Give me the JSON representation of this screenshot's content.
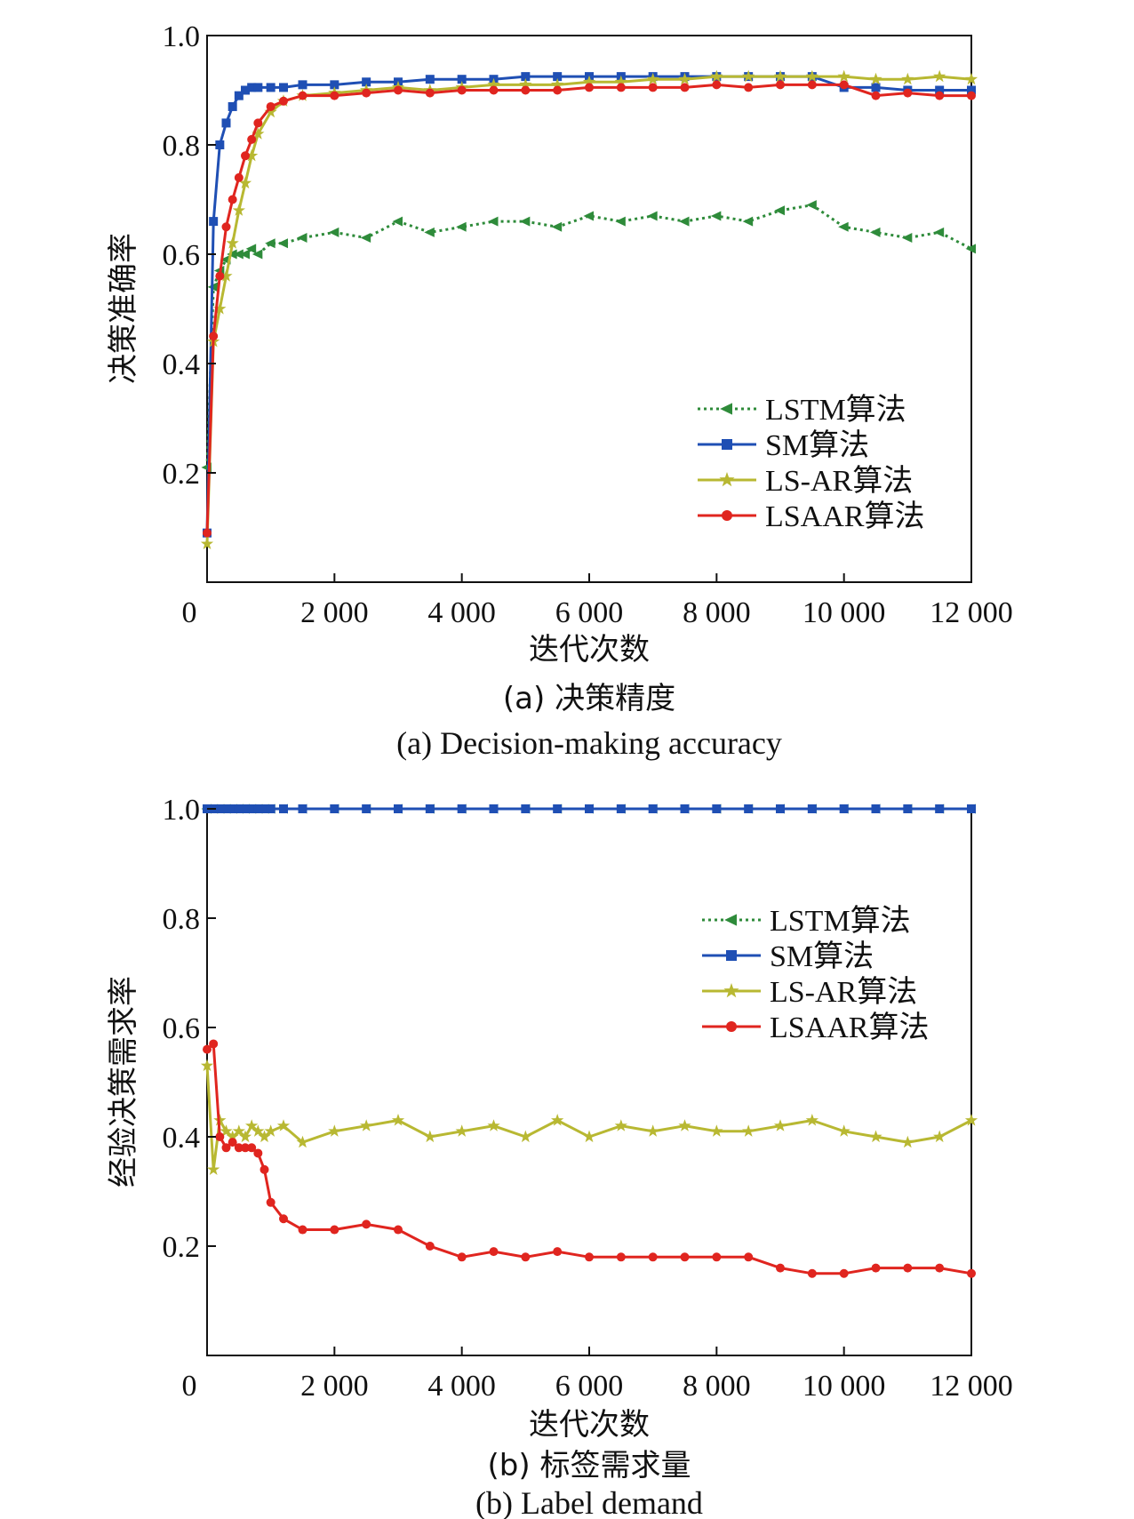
{
  "chart_data": [
    {
      "type": "line",
      "id": "a",
      "xlabel": "迭代次数",
      "ylabel": "决策准确率",
      "caption_zh": "(a) 决策精度",
      "caption_en": "(a) Decision-making accuracy",
      "xlim": [
        0,
        12000
      ],
      "ylim": [
        0,
        1.0
      ],
      "x_ticks": [
        0,
        2000,
        4000,
        6000,
        8000,
        10000,
        12000
      ],
      "x_tick_labels": [
        "0",
        "2 000",
        "4 000",
        "6 000",
        "8 000",
        "10 000",
        "12 000"
      ],
      "y_ticks": [
        0.2,
        0.4,
        0.6,
        0.8,
        1.0
      ],
      "y_tick_labels": [
        "0.2",
        "0.4",
        "0.6",
        "0.8",
        "1.0"
      ],
      "legend_position": "lower-right",
      "x": [
        0,
        100,
        200,
        300,
        400,
        500,
        600,
        700,
        800,
        1000,
        1200,
        1500,
        2000,
        2500,
        3000,
        3500,
        4000,
        4500,
        5000,
        5500,
        6000,
        6500,
        7000,
        7500,
        8000,
        8500,
        9000,
        9500,
        10000,
        10500,
        11000,
        11500,
        12000
      ],
      "series": [
        {
          "name": "LSTM算法",
          "color": "#2e8b3a",
          "marker": "triangle-left",
          "dash": "dotted",
          "values": [
            0.21,
            0.54,
            0.57,
            0.59,
            0.6,
            0.6,
            0.6,
            0.61,
            0.6,
            0.62,
            0.62,
            0.63,
            0.64,
            0.63,
            0.66,
            0.64,
            0.65,
            0.66,
            0.66,
            0.65,
            0.67,
            0.66,
            0.67,
            0.66,
            0.67,
            0.66,
            0.68,
            0.69,
            0.65,
            0.64,
            0.63,
            0.64,
            0.61
          ]
        },
        {
          "name": "SM算法",
          "color": "#1f4fb4",
          "marker": "square",
          "dash": "solid",
          "values": [
            0.09,
            0.66,
            0.8,
            0.84,
            0.87,
            0.89,
            0.9,
            0.905,
            0.905,
            0.905,
            0.905,
            0.91,
            0.91,
            0.915,
            0.915,
            0.92,
            0.92,
            0.92,
            0.925,
            0.925,
            0.925,
            0.925,
            0.925,
            0.925,
            0.925,
            0.925,
            0.925,
            0.925,
            0.905,
            0.905,
            0.9,
            0.9,
            0.9
          ]
        },
        {
          "name": "LS-AR算法",
          "color": "#b8b832",
          "marker": "star",
          "dash": "solid",
          "values": [
            0.07,
            0.44,
            0.5,
            0.56,
            0.62,
            0.68,
            0.73,
            0.78,
            0.82,
            0.86,
            0.88,
            0.89,
            0.895,
            0.9,
            0.905,
            0.9,
            0.905,
            0.91,
            0.91,
            0.91,
            0.915,
            0.915,
            0.92,
            0.92,
            0.925,
            0.925,
            0.925,
            0.925,
            0.925,
            0.92,
            0.92,
            0.925,
            0.92
          ]
        },
        {
          "name": "LSAAR算法",
          "color": "#e0251f",
          "marker": "circle",
          "dash": "solid",
          "values": [
            0.09,
            0.45,
            0.56,
            0.65,
            0.7,
            0.74,
            0.78,
            0.81,
            0.84,
            0.87,
            0.88,
            0.89,
            0.89,
            0.895,
            0.9,
            0.895,
            0.9,
            0.9,
            0.9,
            0.9,
            0.905,
            0.905,
            0.905,
            0.905,
            0.91,
            0.905,
            0.91,
            0.91,
            0.91,
            0.89,
            0.895,
            0.89,
            0.89
          ]
        }
      ]
    },
    {
      "type": "line",
      "id": "b",
      "xlabel": "迭代次数",
      "ylabel": "经验决策需求率",
      "caption_zh": "(b) 标签需求量",
      "caption_en": "(b) Label demand",
      "xlim": [
        0,
        12000
      ],
      "ylim": [
        0,
        1.0
      ],
      "x_ticks": [
        0,
        2000,
        4000,
        6000,
        8000,
        10000,
        12000
      ],
      "x_tick_labels": [
        "0",
        "2 000",
        "4 000",
        "6 000",
        "8 000",
        "10 000",
        "12 000"
      ],
      "y_ticks": [
        0.2,
        0.4,
        0.6,
        0.8,
        1.0
      ],
      "y_tick_labels": [
        "0.2",
        "0.4",
        "0.6",
        "0.8",
        "1.0"
      ],
      "legend_position": "upper-right",
      "x": [
        0,
        100,
        200,
        300,
        400,
        500,
        600,
        700,
        800,
        900,
        1000,
        1200,
        1500,
        2000,
        2500,
        3000,
        3500,
        4000,
        4500,
        5000,
        5500,
        6000,
        6500,
        7000,
        7500,
        8000,
        8500,
        9000,
        9500,
        10000,
        10500,
        11000,
        11500,
        12000
      ],
      "series": [
        {
          "name": "LSTM算法",
          "color": "#2e8b3a",
          "marker": "triangle-left",
          "dash": "dotted",
          "values": [
            1.0,
            1.0,
            1.0,
            1.0,
            1.0,
            1.0,
            1.0,
            1.0,
            1.0,
            1.0,
            1.0,
            1.0,
            1.0,
            1.0,
            1.0,
            1.0,
            1.0,
            1.0,
            1.0,
            1.0,
            1.0,
            1.0,
            1.0,
            1.0,
            1.0,
            1.0,
            1.0,
            1.0,
            1.0,
            1.0,
            1.0,
            1.0,
            1.0,
            1.0
          ]
        },
        {
          "name": "SM算法",
          "color": "#1f4fb4",
          "marker": "square",
          "dash": "solid",
          "values": [
            1.0,
            1.0,
            1.0,
            1.0,
            1.0,
            1.0,
            1.0,
            1.0,
            1.0,
            1.0,
            1.0,
            1.0,
            1.0,
            1.0,
            1.0,
            1.0,
            1.0,
            1.0,
            1.0,
            1.0,
            1.0,
            1.0,
            1.0,
            1.0,
            1.0,
            1.0,
            1.0,
            1.0,
            1.0,
            1.0,
            1.0,
            1.0,
            1.0,
            1.0
          ]
        },
        {
          "name": "LS-AR算法",
          "color": "#b8b832",
          "marker": "star",
          "dash": "solid",
          "values": [
            0.53,
            0.34,
            0.43,
            0.41,
            0.4,
            0.41,
            0.4,
            0.42,
            0.41,
            0.4,
            0.41,
            0.42,
            0.39,
            0.41,
            0.42,
            0.43,
            0.4,
            0.41,
            0.42,
            0.4,
            0.43,
            0.4,
            0.42,
            0.41,
            0.42,
            0.41,
            0.41,
            0.42,
            0.43,
            0.41,
            0.4,
            0.39,
            0.4,
            0.43
          ]
        },
        {
          "name": "LSAAR算法",
          "color": "#e0251f",
          "marker": "circle",
          "dash": "solid",
          "values": [
            0.56,
            0.57,
            0.4,
            0.38,
            0.39,
            0.38,
            0.38,
            0.38,
            0.37,
            0.34,
            0.28,
            0.25,
            0.23,
            0.23,
            0.24,
            0.23,
            0.2,
            0.18,
            0.19,
            0.18,
            0.19,
            0.18,
            0.18,
            0.18,
            0.18,
            0.18,
            0.18,
            0.16,
            0.15,
            0.15,
            0.16,
            0.16,
            0.16,
            0.15
          ]
        }
      ]
    }
  ]
}
